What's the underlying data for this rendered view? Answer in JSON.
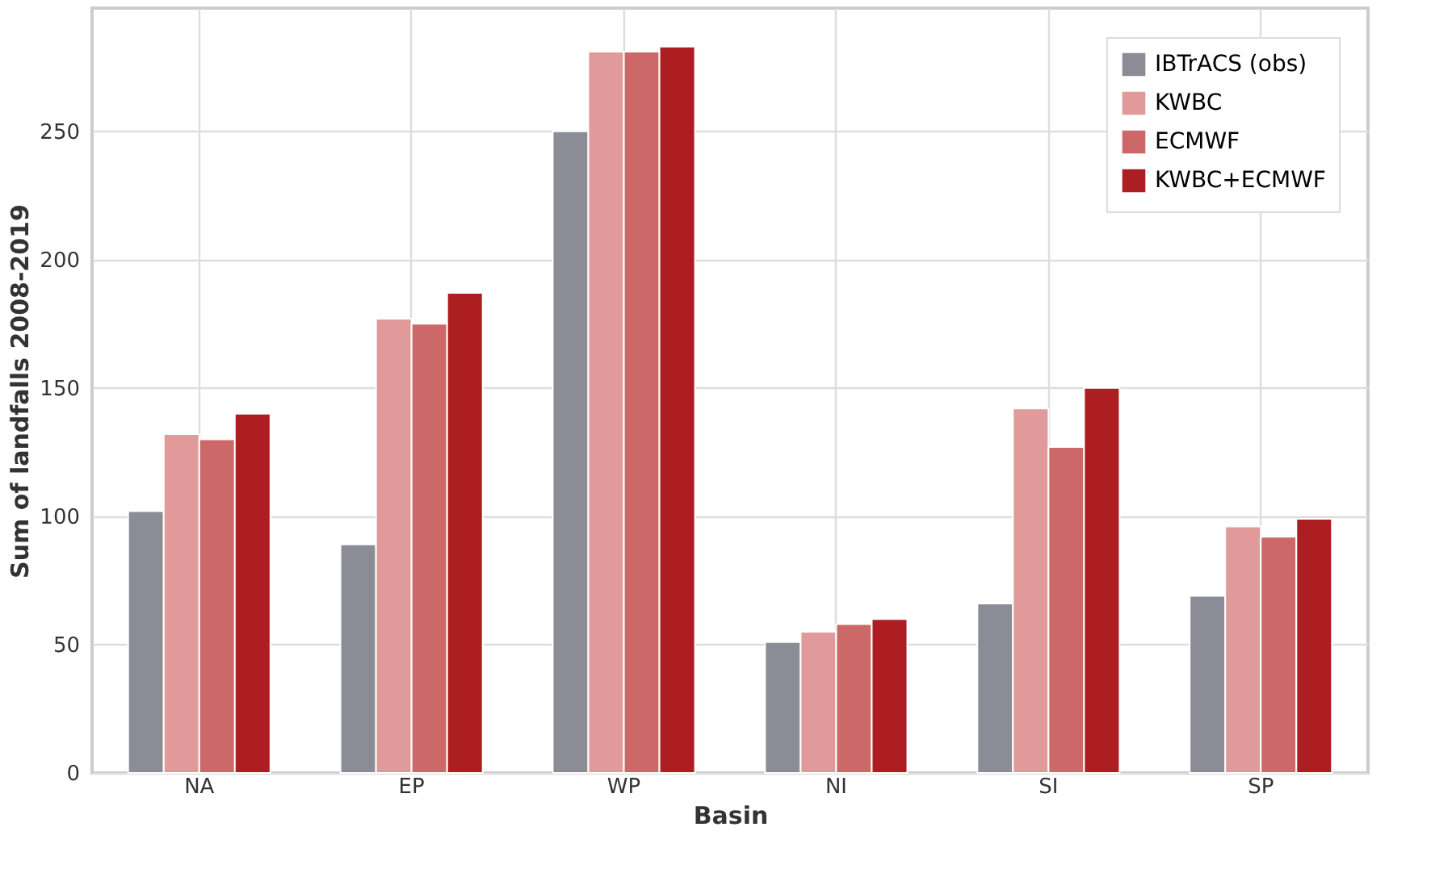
{
  "chart_data": {
    "type": "bar",
    "xlabel": "Basin",
    "ylabel": "Sum of landfalls 2008-2019",
    "categories": [
      "NA",
      "EP",
      "WP",
      "NI",
      "SI",
      "SP"
    ],
    "series": [
      {
        "name": "IBTrACS (obs)",
        "color": "#8c8c96",
        "values": [
          102,
          89,
          250,
          51,
          66,
          69
        ]
      },
      {
        "name": "KWBC",
        "color": "#e09a9a",
        "values": [
          132,
          177,
          281,
          55,
          142,
          96
        ]
      },
      {
        "name": "ECMWF",
        "color": "#cc6868",
        "values": [
          130,
          175,
          281,
          58,
          127,
          92
        ]
      },
      {
        "name": "KWBC+ECMWF",
        "color": "#ad1e22",
        "values": [
          140,
          187,
          283,
          60,
          150,
          99
        ]
      }
    ],
    "ylim": [
      0,
      298
    ],
    "yticks": [
      0,
      50,
      100,
      150,
      200,
      250
    ],
    "grid": true,
    "legend": "top right"
  }
}
